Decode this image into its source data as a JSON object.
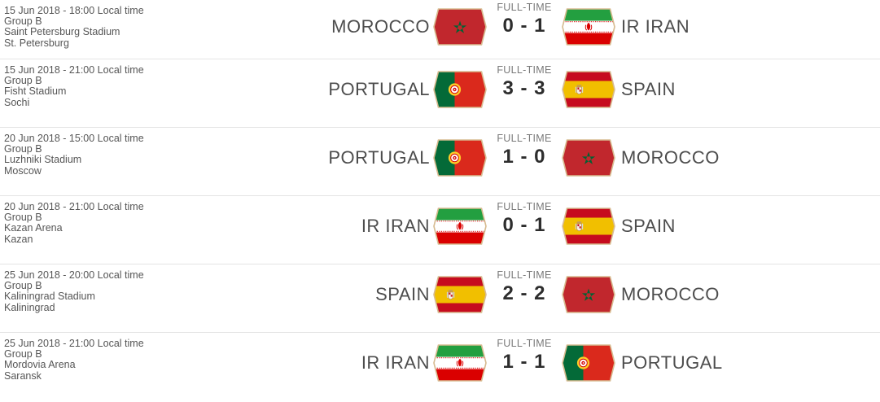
{
  "theme": {
    "separator": "#e4e4e4",
    "flag-border": "#d7bb90",
    "team-name-color": "#4d4d4d",
    "score-color": "#2d2d2d",
    "status-color": "#7a7a7a",
    "info-color": "#565656"
  },
  "matches": [
    {
      "datetime": "15 Jun 2018 - 18:00 Local time",
      "group": "Group B",
      "stadium": "Saint Petersburg Stadium",
      "city": "St. Petersburg",
      "status": "FULL-TIME",
      "score": "0 - 1",
      "home": {
        "name": "MOROCCO",
        "flag": "morocco"
      },
      "away": {
        "name": "IR IRAN",
        "flag": "iran"
      }
    },
    {
      "datetime": "15 Jun 2018 - 21:00 Local time",
      "group": "Group B",
      "stadium": "Fisht Stadium",
      "city": "Sochi",
      "status": "FULL-TIME",
      "score": "3 - 3",
      "home": {
        "name": "PORTUGAL",
        "flag": "portugal"
      },
      "away": {
        "name": "SPAIN",
        "flag": "spain"
      }
    },
    {
      "datetime": "20 Jun 2018 - 15:00 Local time",
      "group": "Group B",
      "stadium": "Luzhniki Stadium",
      "city": "Moscow",
      "status": "FULL-TIME",
      "score": "1 - 0",
      "home": {
        "name": "PORTUGAL",
        "flag": "portugal"
      },
      "away": {
        "name": "MOROCCO",
        "flag": "morocco"
      }
    },
    {
      "datetime": "20 Jun 2018 - 21:00 Local time",
      "group": "Group B",
      "stadium": "Kazan Arena",
      "city": "Kazan",
      "status": "FULL-TIME",
      "score": "0 - 1",
      "home": {
        "name": "IR IRAN",
        "flag": "iran"
      },
      "away": {
        "name": "SPAIN",
        "flag": "spain"
      }
    },
    {
      "datetime": "25 Jun 2018 - 20:00 Local time",
      "group": "Group B",
      "stadium": "Kaliningrad Stadium",
      "city": "Kaliningrad",
      "status": "FULL-TIME",
      "score": "2 - 2",
      "home": {
        "name": "SPAIN",
        "flag": "spain"
      },
      "away": {
        "name": "MOROCCO",
        "flag": "morocco"
      }
    },
    {
      "datetime": "25 Jun 2018 - 21:00 Local time",
      "group": "Group B",
      "stadium": "Mordovia Arena",
      "city": "Saransk",
      "status": "FULL-TIME",
      "score": "1 - 1",
      "home": {
        "name": "IR IRAN",
        "flag": "iran"
      },
      "away": {
        "name": "PORTUGAL",
        "flag": "portugal"
      }
    }
  ]
}
